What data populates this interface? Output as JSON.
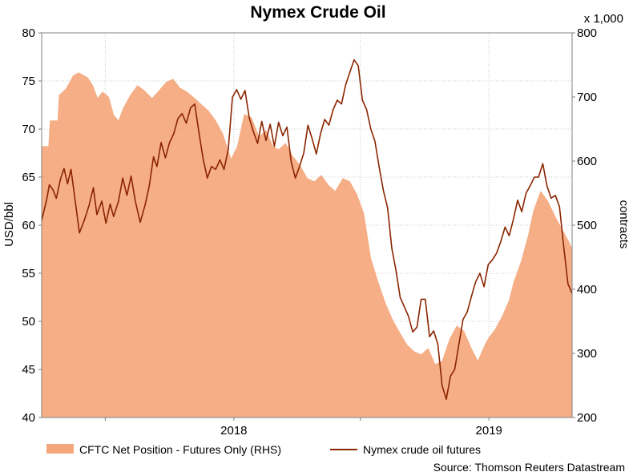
{
  "chart_data": {
    "type": "line",
    "title": "Nymex Crude Oil",
    "ylabel_left": "USD/bbl",
    "ylabel_right": "contracts",
    "right_multiplier": "x 1,000",
    "ylim_left": [
      40,
      80
    ],
    "ylim_right": [
      200,
      800
    ],
    "yticks_left": [
      "80",
      "75",
      "70",
      "65",
      "60",
      "55",
      "50",
      "45",
      "40"
    ],
    "yticks_right": [
      "800",
      "700",
      "600",
      "500",
      "400",
      "300",
      "200"
    ],
    "xlim": [
      "2017-04-01",
      "2019-04-30"
    ],
    "xticks": [
      {
        "label": "2018",
        "date": "2018-01-01"
      },
      {
        "label": "2019",
        "date": "2019-01-01"
      }
    ],
    "xgrid": [
      "2017-07-01",
      "2018-01-01",
      "2018-07-01",
      "2019-01-01"
    ],
    "grid": true,
    "legend_position": "bottom",
    "source": "Source: Thomson Reuters Datastream",
    "series": [
      {
        "name": "CFTC Net Position - Futures Only (RHS)",
        "type": "area",
        "axis": "right",
        "color": "#f4a77c",
        "points": [
          [
            "2017-04-01",
            623
          ],
          [
            "2017-04-11",
            623
          ],
          [
            "2017-04-13",
            663
          ],
          [
            "2017-04-24",
            663
          ],
          [
            "2017-04-26",
            703
          ],
          [
            "2017-05-06",
            713
          ],
          [
            "2017-05-16",
            733
          ],
          [
            "2017-05-24",
            738
          ],
          [
            "2017-06-06",
            730
          ],
          [
            "2017-06-13",
            718
          ],
          [
            "2017-06-20",
            698
          ],
          [
            "2017-06-27",
            708
          ],
          [
            "2017-07-06",
            700
          ],
          [
            "2017-07-13",
            672
          ],
          [
            "2017-07-20",
            663
          ],
          [
            "2017-07-27",
            683
          ],
          [
            "2017-08-06",
            703
          ],
          [
            "2017-08-16",
            718
          ],
          [
            "2017-08-26",
            710
          ],
          [
            "2017-09-06",
            698
          ],
          [
            "2017-09-16",
            710
          ],
          [
            "2017-09-26",
            723
          ],
          [
            "2017-10-06",
            728
          ],
          [
            "2017-10-16",
            714
          ],
          [
            "2017-10-26",
            708
          ],
          [
            "2017-11-06",
            698
          ],
          [
            "2017-11-16",
            688
          ],
          [
            "2017-11-26",
            678
          ],
          [
            "2017-12-06",
            663
          ],
          [
            "2017-12-16",
            643
          ],
          [
            "2017-12-28",
            603
          ],
          [
            "2018-01-06",
            623
          ],
          [
            "2018-01-16",
            673
          ],
          [
            "2018-01-26",
            668
          ],
          [
            "2018-02-06",
            638
          ],
          [
            "2018-02-16",
            648
          ],
          [
            "2018-02-26",
            623
          ],
          [
            "2018-03-06",
            618
          ],
          [
            "2018-03-16",
            628
          ],
          [
            "2018-03-26",
            608
          ],
          [
            "2018-04-06",
            593
          ],
          [
            "2018-04-16",
            573
          ],
          [
            "2018-04-26",
            568
          ],
          [
            "2018-05-06",
            578
          ],
          [
            "2018-05-16",
            563
          ],
          [
            "2018-05-26",
            553
          ],
          [
            "2018-06-06",
            573
          ],
          [
            "2018-06-16",
            568
          ],
          [
            "2018-06-26",
            548
          ],
          [
            "2018-07-06",
            518
          ],
          [
            "2018-07-16",
            448
          ],
          [
            "2018-07-26",
            413
          ],
          [
            "2018-08-06",
            378
          ],
          [
            "2018-08-16",
            353
          ],
          [
            "2018-08-26",
            333
          ],
          [
            "2018-09-06",
            313
          ],
          [
            "2018-09-16",
            303
          ],
          [
            "2018-09-26",
            298
          ],
          [
            "2018-10-06",
            308
          ],
          [
            "2018-10-16",
            283
          ],
          [
            "2018-10-26",
            288
          ],
          [
            "2018-11-06",
            323
          ],
          [
            "2018-11-16",
            343
          ],
          [
            "2018-11-26",
            335
          ],
          [
            "2018-12-06",
            310
          ],
          [
            "2018-12-16",
            288
          ],
          [
            "2018-12-26",
            313
          ],
          [
            "2018-12-31",
            323
          ],
          [
            "2019-01-10",
            338
          ],
          [
            "2019-01-20",
            358
          ],
          [
            "2019-01-30",
            383
          ],
          [
            "2019-02-06",
            413
          ],
          [
            "2019-02-16",
            443
          ],
          [
            "2019-02-26",
            483
          ],
          [
            "2019-03-06",
            523
          ],
          [
            "2019-03-16",
            553
          ],
          [
            "2019-03-26",
            538
          ],
          [
            "2019-04-06",
            513
          ],
          [
            "2019-04-16",
            493
          ],
          [
            "2019-04-26",
            473
          ],
          [
            "2019-04-30",
            463
          ]
        ]
      },
      {
        "name": "Nymex crude oil futures",
        "type": "line",
        "axis": "left",
        "color": "#8b2500",
        "points": [
          [
            "2017-04-01",
            60.5
          ],
          [
            "2017-04-08",
            62.6
          ],
          [
            "2017-04-12",
            64.2
          ],
          [
            "2017-04-17",
            63.7
          ],
          [
            "2017-04-22",
            62.8
          ],
          [
            "2017-04-28",
            64.8
          ],
          [
            "2017-05-03",
            65.9
          ],
          [
            "2017-05-08",
            64.3
          ],
          [
            "2017-05-13",
            65.8
          ],
          [
            "2017-05-20",
            62.0
          ],
          [
            "2017-05-25",
            59.2
          ],
          [
            "2017-06-01",
            60.5
          ],
          [
            "2017-06-08",
            62.1
          ],
          [
            "2017-06-14",
            63.9
          ],
          [
            "2017-06-19",
            61.1
          ],
          [
            "2017-06-26",
            62.5
          ],
          [
            "2017-07-02",
            60.2
          ],
          [
            "2017-07-08",
            62.2
          ],
          [
            "2017-07-13",
            60.9
          ],
          [
            "2017-07-20",
            62.5
          ],
          [
            "2017-07-26",
            64.9
          ],
          [
            "2017-08-01",
            63.1
          ],
          [
            "2017-08-07",
            65.1
          ],
          [
            "2017-08-13",
            62.5
          ],
          [
            "2017-08-20",
            60.3
          ],
          [
            "2017-08-27",
            62.1
          ],
          [
            "2017-09-02",
            64.1
          ],
          [
            "2017-09-08",
            67.1
          ],
          [
            "2017-09-13",
            66.1
          ],
          [
            "2017-09-19",
            68.6
          ],
          [
            "2017-09-25",
            67.0
          ],
          [
            "2017-10-01",
            68.6
          ],
          [
            "2017-10-07",
            69.5
          ],
          [
            "2017-10-13",
            71.1
          ],
          [
            "2017-10-19",
            71.6
          ],
          [
            "2017-10-25",
            70.6
          ],
          [
            "2017-10-31",
            72.2
          ],
          [
            "2017-11-06",
            72.6
          ],
          [
            "2017-11-12",
            69.7
          ],
          [
            "2017-11-18",
            66.9
          ],
          [
            "2017-11-24",
            64.9
          ],
          [
            "2017-11-30",
            66.1
          ],
          [
            "2017-12-06",
            65.8
          ],
          [
            "2017-12-12",
            66.8
          ],
          [
            "2017-12-18",
            65.8
          ],
          [
            "2017-12-24",
            67.9
          ],
          [
            "2017-12-30",
            73.3
          ],
          [
            "2018-01-05",
            74.1
          ],
          [
            "2018-01-11",
            73.1
          ],
          [
            "2018-01-17",
            74.0
          ],
          [
            "2018-01-23",
            71.2
          ],
          [
            "2018-01-29",
            69.7
          ],
          [
            "2018-02-04",
            68.5
          ],
          [
            "2018-02-10",
            70.8
          ],
          [
            "2018-02-16",
            68.8
          ],
          [
            "2018-02-22",
            70.5
          ],
          [
            "2018-02-28",
            68.2
          ],
          [
            "2018-03-06",
            70.7
          ],
          [
            "2018-03-12",
            69.3
          ],
          [
            "2018-03-18",
            70.2
          ],
          [
            "2018-03-24",
            66.6
          ],
          [
            "2018-03-30",
            64.9
          ],
          [
            "2018-04-05",
            66.1
          ],
          [
            "2018-04-11",
            67.5
          ],
          [
            "2018-04-17",
            70.4
          ],
          [
            "2018-04-23",
            69.0
          ],
          [
            "2018-04-29",
            67.4
          ],
          [
            "2018-05-05",
            69.5
          ],
          [
            "2018-05-11",
            71.0
          ],
          [
            "2018-05-17",
            70.4
          ],
          [
            "2018-05-23",
            72.0
          ],
          [
            "2018-05-29",
            73.0
          ],
          [
            "2018-06-04",
            72.6
          ],
          [
            "2018-06-10",
            74.6
          ],
          [
            "2018-06-16",
            75.9
          ],
          [
            "2018-06-22",
            77.2
          ],
          [
            "2018-06-28",
            76.6
          ],
          [
            "2018-07-04",
            73.0
          ],
          [
            "2018-07-10",
            72.0
          ],
          [
            "2018-07-16",
            70.0
          ],
          [
            "2018-07-22",
            68.7
          ],
          [
            "2018-07-28",
            66.0
          ],
          [
            "2018-08-03",
            63.6
          ],
          [
            "2018-08-09",
            61.8
          ],
          [
            "2018-08-15",
            57.6
          ],
          [
            "2018-08-21",
            55.3
          ],
          [
            "2018-08-27",
            52.5
          ],
          [
            "2018-09-02",
            51.5
          ],
          [
            "2018-09-08",
            50.5
          ],
          [
            "2018-09-14",
            48.9
          ],
          [
            "2018-09-20",
            49.4
          ],
          [
            "2018-09-26",
            52.3
          ],
          [
            "2018-10-02",
            52.3
          ],
          [
            "2018-10-08",
            48.4
          ],
          [
            "2018-10-14",
            49.0
          ],
          [
            "2018-10-20",
            47.6
          ],
          [
            "2018-10-26",
            43.3
          ],
          [
            "2018-11-01",
            41.9
          ],
          [
            "2018-11-07",
            44.3
          ],
          [
            "2018-11-13",
            45.0
          ],
          [
            "2018-11-19",
            47.6
          ],
          [
            "2018-11-25",
            50.2
          ],
          [
            "2018-12-01",
            51.0
          ],
          [
            "2018-12-07",
            52.6
          ],
          [
            "2018-12-13",
            54.1
          ],
          [
            "2018-12-19",
            55.0
          ],
          [
            "2018-12-25",
            53.6
          ],
          [
            "2018-12-31",
            55.9
          ],
          [
            "2019-01-06",
            56.4
          ],
          [
            "2019-01-12",
            57.1
          ],
          [
            "2019-01-18",
            58.3
          ],
          [
            "2019-01-24",
            59.8
          ],
          [
            "2019-01-30",
            58.9
          ],
          [
            "2019-02-05",
            60.6
          ],
          [
            "2019-02-11",
            62.6
          ],
          [
            "2019-02-17",
            61.4
          ],
          [
            "2019-02-23",
            63.3
          ],
          [
            "2019-03-01",
            64.1
          ],
          [
            "2019-03-07",
            65.0
          ],
          [
            "2019-03-13",
            65.0
          ],
          [
            "2019-03-19",
            66.4
          ],
          [
            "2019-03-25",
            64.1
          ],
          [
            "2019-03-31",
            62.8
          ],
          [
            "2019-04-06",
            63.1
          ],
          [
            "2019-04-12",
            61.9
          ],
          [
            "2019-04-18",
            57.8
          ],
          [
            "2019-04-24",
            53.9
          ],
          [
            "2019-04-30",
            52.9
          ]
        ]
      }
    ]
  }
}
